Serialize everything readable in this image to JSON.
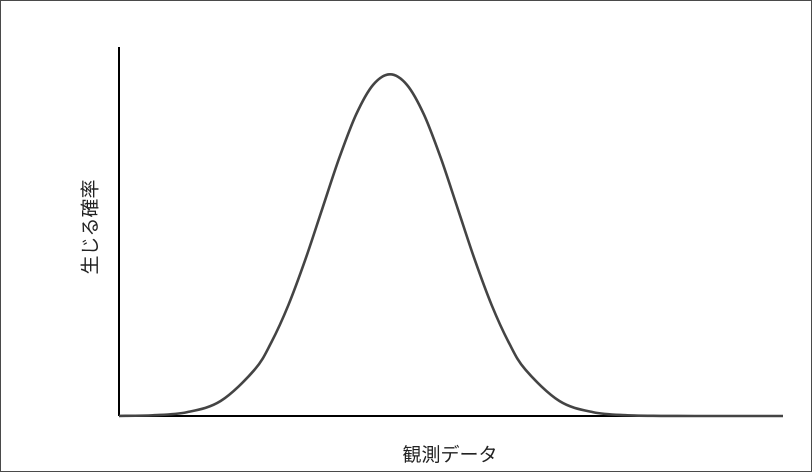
{
  "chart_data": {
    "type": "line",
    "title": "",
    "xlabel": "観測データ",
    "ylabel": "生じる確率",
    "x_range": [
      -4.0,
      5.8
    ],
    "y_range": [
      0,
      1.08
    ],
    "grid": false,
    "legend": "none",
    "colors": {
      "line": "#444444",
      "axis": "#000000"
    },
    "series": [
      {
        "x": [
          -4.0,
          -3.5,
          -3.0,
          -2.5,
          -2.0,
          -1.75,
          -1.5,
          -1.25,
          -1.0,
          -0.75,
          -0.5,
          -0.25,
          0.0,
          0.25,
          0.5,
          0.75,
          1.0,
          1.25,
          1.5,
          1.75,
          2.0,
          2.5,
          3.0,
          3.5,
          4.0,
          4.5,
          5.0,
          5.8
        ],
        "y": [
          0.0003,
          0.0022,
          0.0111,
          0.0439,
          0.1353,
          0.2163,
          0.3247,
          0.4578,
          0.6065,
          0.7548,
          0.8825,
          0.9692,
          1.0,
          0.9692,
          0.8825,
          0.7548,
          0.6065,
          0.4578,
          0.3247,
          0.2163,
          0.1353,
          0.0439,
          0.0111,
          0.0022,
          0.0003,
          4e-05,
          4e-06,
          0.0
        ]
      }
    ]
  }
}
